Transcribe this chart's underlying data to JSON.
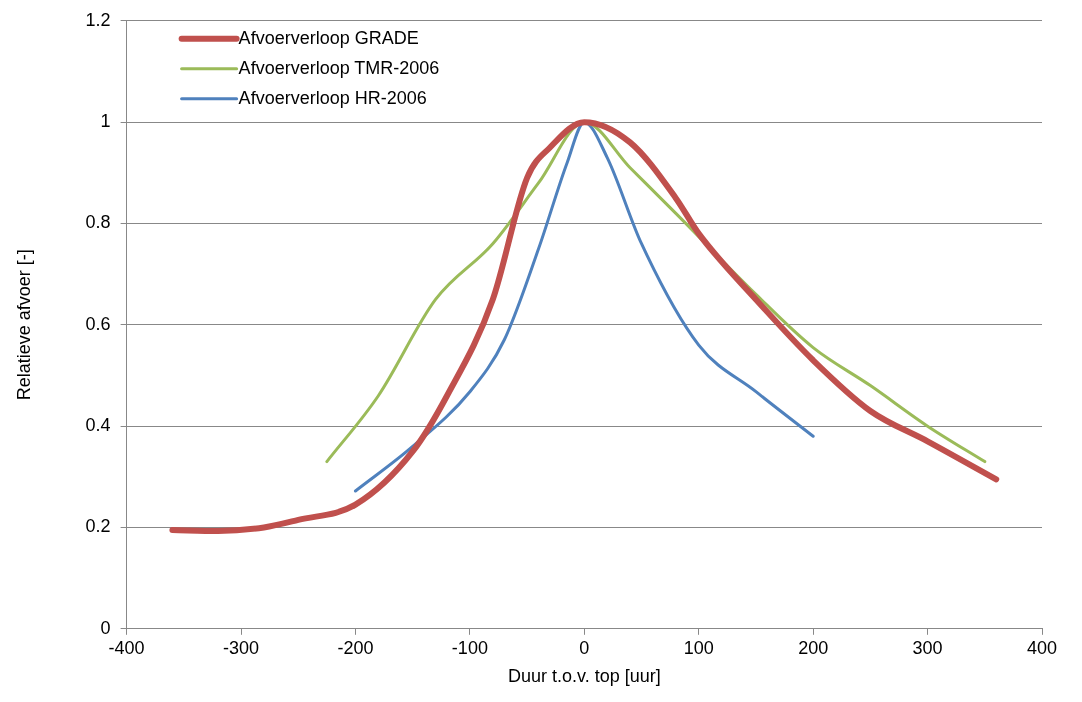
{
  "chart_data": {
    "type": "line",
    "xlabel": "Duur t.o.v. top [uur]",
    "ylabel": "Relatieve afvoer [-]",
    "xlim": [
      -400,
      400
    ],
    "xticks": [
      -400,
      -300,
      -200,
      -100,
      0,
      100,
      200,
      300,
      400
    ],
    "ylim": [
      0,
      1.2
    ],
    "yticks": [
      0,
      0.2,
      0.4,
      0.6,
      0.8,
      1,
      1.2
    ],
    "grid": "y",
    "legend": "top left",
    "marker": "none",
    "line_style": "solid",
    "series": [
      {
        "name": "Afvoerverloop GRADE",
        "color": "#c0504d",
        "x": [
          -360,
          -320,
          -280,
          -250,
          -200,
          -150,
          -120,
          -80,
          -50,
          -30,
          0,
          40,
          80,
          100,
          150,
          200,
          250,
          300,
          360
        ],
        "values": [
          0.195,
          0.193,
          0.2,
          0.215,
          0.245,
          0.35,
          0.46,
          0.65,
          0.89,
          0.95,
          1.0,
          0.96,
          0.85,
          0.78,
          0.65,
          0.53,
          0.43,
          0.37,
          0.295
        ]
      },
      {
        "name": "Afvoerverloop TMR-2006",
        "color": "#9bbb59",
        "x": [
          -225,
          -180,
          -130,
          -80,
          -40,
          0,
          40,
          80,
          150,
          200,
          250,
          300,
          350
        ],
        "values": [
          0.33,
          0.46,
          0.65,
          0.76,
          0.88,
          1.0,
          0.91,
          0.82,
          0.66,
          0.555,
          0.48,
          0.4,
          0.33
        ]
      },
      {
        "name": "Afvoerverloop HR-2006",
        "color": "#4f81bd",
        "x": [
          -200,
          -150,
          -100,
          -70,
          -40,
          -15,
          0,
          20,
          50,
          100,
          150,
          200
        ],
        "values": [
          0.272,
          0.36,
          0.468,
          0.57,
          0.75,
          0.92,
          1.0,
          0.93,
          0.76,
          0.56,
          0.468,
          0.38
        ]
      }
    ]
  }
}
